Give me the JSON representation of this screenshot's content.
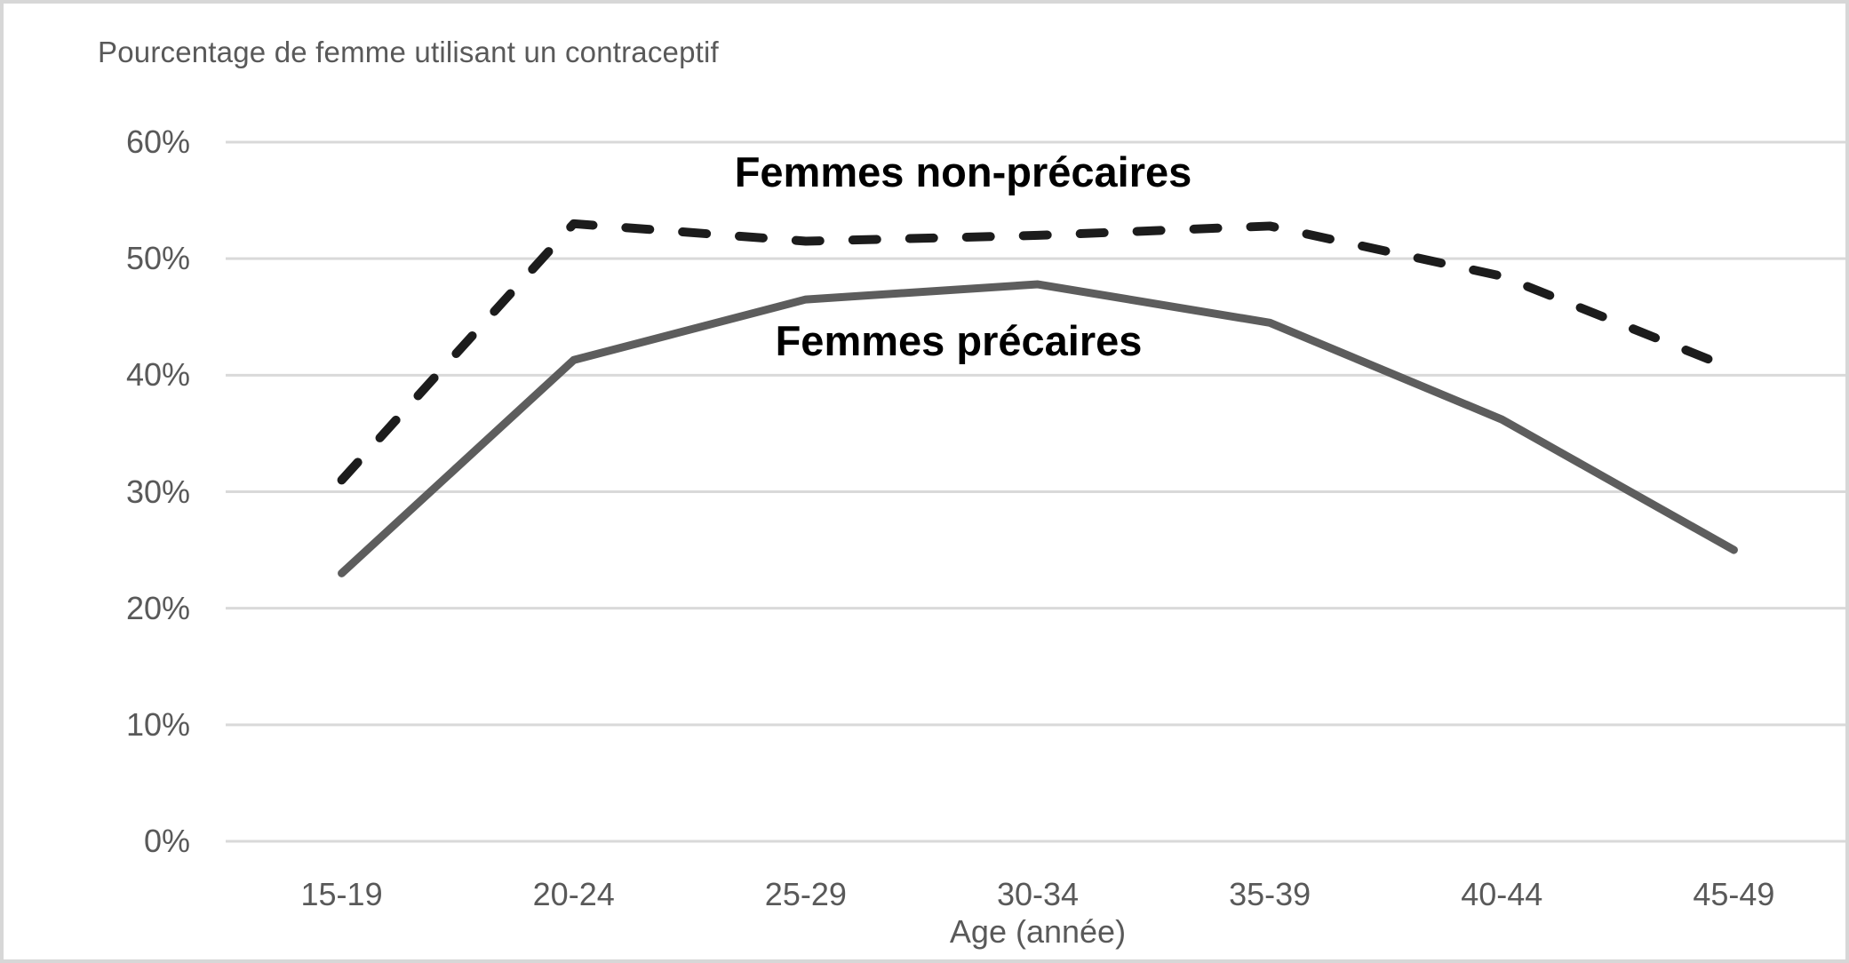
{
  "chart_data": {
    "type": "line",
    "title": "Pourcentage de femme utilisant un contraceptif",
    "xlabel": "Age (année)",
    "ylabel": "",
    "categories": [
      "15-19",
      "20-24",
      "25-29",
      "30-34",
      "35-39",
      "40-44",
      "45-49"
    ],
    "series": [
      {
        "name": "Femmes non-précaires",
        "style": "dashed",
        "color": "#1c1c1c",
        "values": [
          31,
          53,
          51.5,
          52,
          52.8,
          48.5,
          40.5
        ]
      },
      {
        "name": "Femmes précaires",
        "style": "solid",
        "color": "#5d5d5d",
        "values": [
          23,
          41.3,
          46.5,
          47.8,
          44.5,
          36.2,
          25
        ]
      }
    ],
    "y_ticks": [
      "0%",
      "10%",
      "20%",
      "30%",
      "40%",
      "50%",
      "60%"
    ],
    "y_tick_values": [
      0,
      10,
      20,
      30,
      40,
      50,
      60
    ],
    "ylim": [
      0,
      60
    ],
    "grid": "horizontal",
    "legend_position": "inline-labels",
    "colors": {
      "grid": "#d9d9d9",
      "tick_text": "#595959",
      "title_text": "#595959",
      "frame_border": "#d7d7d7",
      "background": "#ffffff"
    }
  }
}
